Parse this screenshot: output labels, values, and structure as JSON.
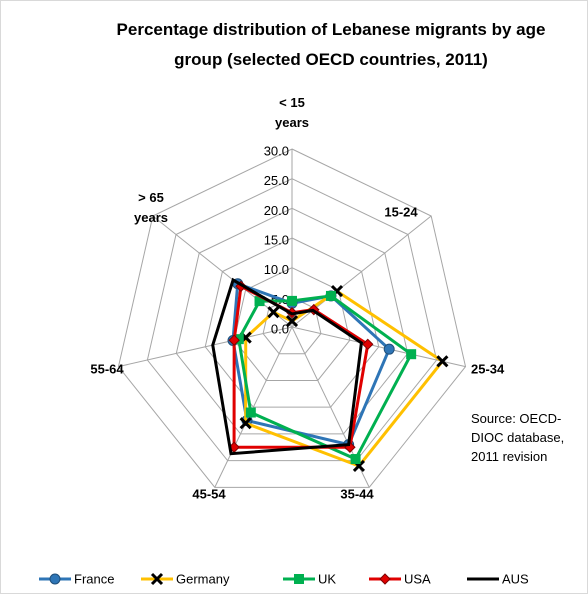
{
  "chart_data": {
    "type": "radar",
    "title": "Percentage distribution of Lebanese migrants by age group (selected OECD countries, 2011)",
    "source": "Source: OECD-DIOC database, 2011 revision",
    "categories": [
      "< 15 years",
      "15-24",
      "25-34",
      "35-44",
      "45-54",
      "55-64",
      "> 65 years"
    ],
    "ylim": [
      0,
      30
    ],
    "yticks": [
      {
        "value": 0,
        "label": "0.0"
      },
      {
        "value": 5,
        "label": "5.0"
      },
      {
        "value": 10,
        "label": "10.0"
      },
      {
        "value": 15,
        "label": "15.0"
      },
      {
        "value": 20,
        "label": "20.0"
      },
      {
        "value": 25,
        "label": "25.0"
      },
      {
        "value": 30,
        "label": "30.0"
      }
    ],
    "grid": true,
    "legend": "bottom",
    "series": [
      {
        "name": "France",
        "color": "#2e75b6",
        "marker": "circle",
        "values": [
          4,
          8.4,
          16.8,
          22,
          17.5,
          10.2,
          11.7
        ]
      },
      {
        "name": "Germany",
        "color": "#ffc000",
        "marker": "x",
        "values": [
          1,
          9.7,
          26,
          26,
          18,
          8,
          4
        ]
      },
      {
        "name": "UK",
        "color": "#00b050",
        "marker": "square",
        "values": [
          4.4,
          8.4,
          20.6,
          24.7,
          16,
          9.2,
          7
        ]
      },
      {
        "name": "USA",
        "color": "#e00000",
        "marker": "diamond",
        "values": [
          2.4,
          4.7,
          13.1,
          22.5,
          22.5,
          10,
          11
        ]
      },
      {
        "name": "AUS",
        "color": "#000000",
        "marker": "none",
        "values": [
          2.2,
          4.5,
          12,
          22,
          23.7,
          13.7,
          12.7
        ]
      }
    ]
  }
}
